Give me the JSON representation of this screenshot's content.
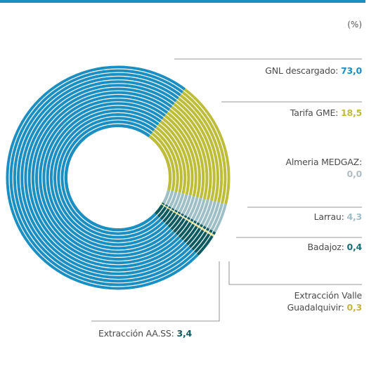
{
  "chart_data": {
    "type": "donut",
    "unit": "(%)",
    "series": [
      {
        "name": "GNL descargado:",
        "values": [
          73.0
        ],
        "value_labels": [
          "73,0"
        ],
        "color": "#1b8ec2",
        "label_color": "#1b8ec2"
      },
      {
        "name": "Tarifa GME:",
        "values": [
          18.5
        ],
        "value_labels": [
          "18,5"
        ],
        "color": "#bdbd3a",
        "label_color": "#bdbd3a"
      },
      {
        "name": "Almeria MEDGAZ:",
        "values": [
          0.0
        ],
        "value_labels": [
          "0,0"
        ],
        "color": "#b4bcc0",
        "label_color": "#b4bcc0"
      },
      {
        "name": "Larrau:",
        "values": [
          4.3
        ],
        "value_labels": [
          "4,3"
        ],
        "color": "#9dbfc5",
        "label_color": "#9dbfc5"
      },
      {
        "name": "Badajoz:",
        "values": [
          0.4
        ],
        "value_labels": [
          "0,4"
        ],
        "color": "#0f5d64",
        "label_color": "#1a6e75"
      },
      {
        "name": "Extracción Valle Guadalquivir:",
        "values": [
          0.3
        ],
        "value_labels": [
          "0,3"
        ],
        "color": "#e6df8a",
        "label_color": "#c2b83a"
      },
      {
        "name": "Extracción AA.SS:",
        "values": [
          3.4
        ],
        "value_labels": [
          "3,4"
        ],
        "color": "#0e5a61",
        "label_color": "#0e5a61"
      }
    ]
  }
}
